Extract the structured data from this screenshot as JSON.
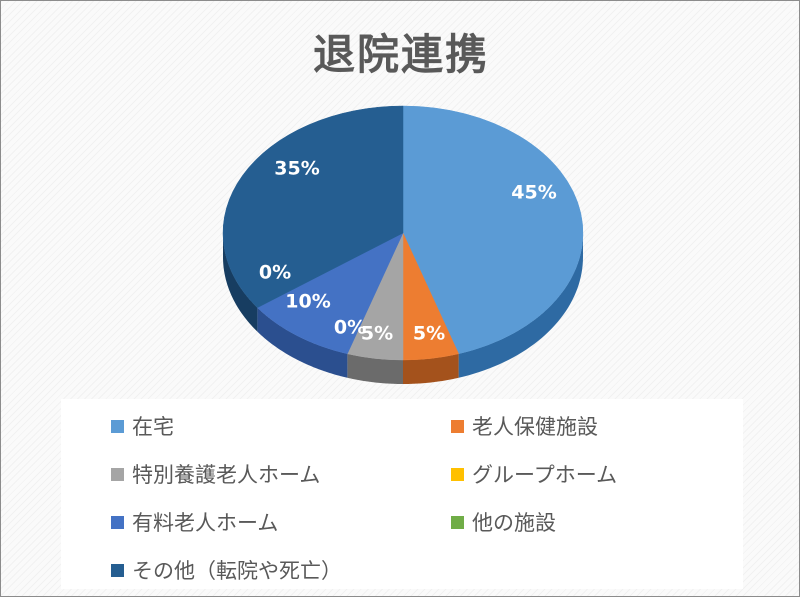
{
  "chart_data": {
    "type": "pie",
    "title": "退院連携",
    "slices": [
      {
        "label": "在宅",
        "value": 45,
        "color": "#5b9bd5",
        "side": "#2e6aa3",
        "data_label": "45%"
      },
      {
        "label": "老人保健施設",
        "value": 5,
        "color": "#ed7d31",
        "side": "#a4521c",
        "data_label": "5%"
      },
      {
        "label": "特別養護老人ホーム",
        "value": 5,
        "color": "#a5a5a5",
        "side": "#6b6b6b",
        "data_label": "5%"
      },
      {
        "label": "グループホーム",
        "value": 0,
        "color": "#ffc000",
        "side": "#b38600",
        "data_label": "0%"
      },
      {
        "label": "有料老人ホーム",
        "value": 10,
        "color": "#4472c4",
        "side": "#2b4f8f",
        "data_label": "10%"
      },
      {
        "label": "他の施設",
        "value": 0,
        "color": "#70ad47",
        "side": "#4c7a2f",
        "data_label": "0%"
      },
      {
        "label": "その他（転院や死亡）",
        "value": 35,
        "color": "#255e91",
        "side": "#173d61",
        "data_label": "35%"
      }
    ],
    "legend_position": "bottom"
  }
}
